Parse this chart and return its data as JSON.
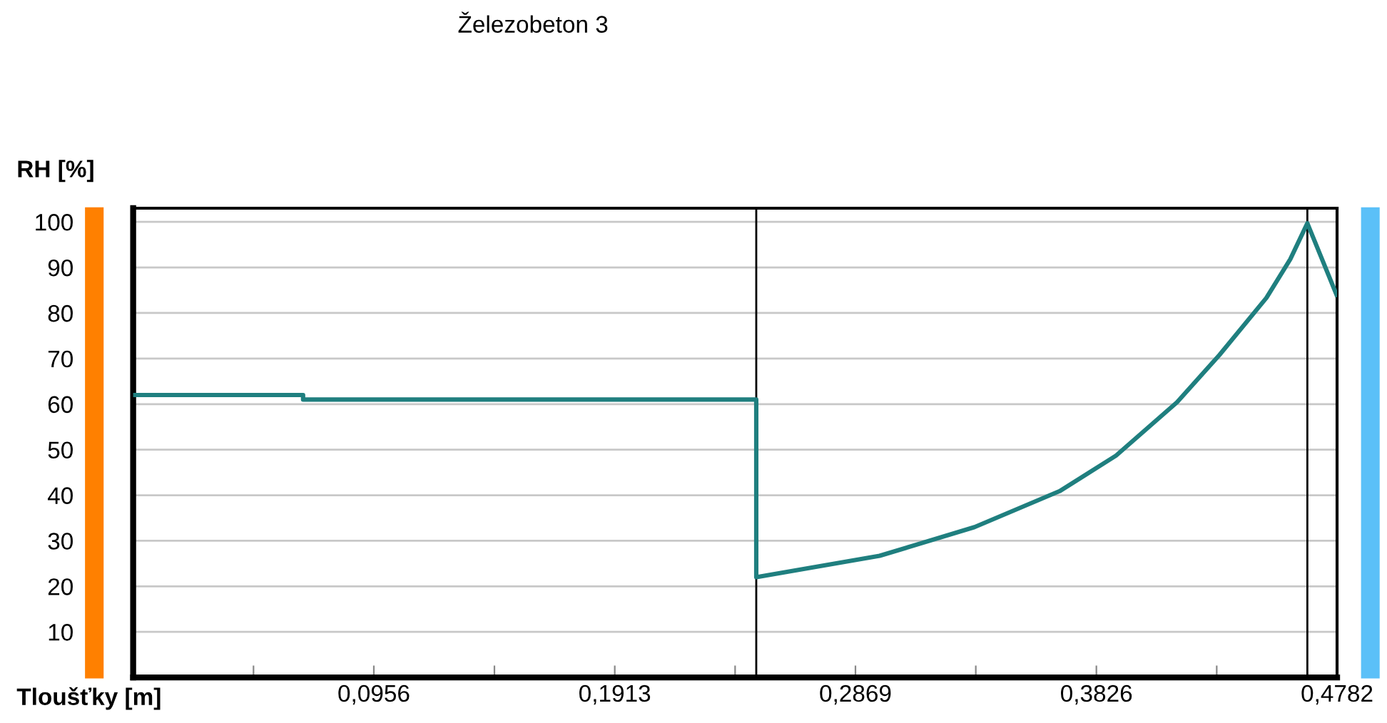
{
  "chart_data": {
    "type": "line",
    "xlabel": "Tloušťky [m]",
    "ylabel": "RH [%]",
    "annotations": [
      "Železobeton 3"
    ],
    "series": [
      {
        "color": "#1f7f7f",
        "x": [
          0,
          0.0675,
          0.0675,
          0.2475,
          0.2475,
          0.2965,
          0.3342,
          0.368,
          0.3904,
          0.4146,
          0.4315,
          0.4501,
          0.4596,
          0.4664,
          0.478
        ],
        "values": [
          62,
          62,
          61,
          61,
          22,
          26.7,
          33,
          40.9,
          48.7,
          60.4,
          70.8,
          83.3,
          91.8,
          99.7,
          84
        ]
      }
    ],
    "xlim": [
      0,
      0.4782
    ],
    "ylim": [
      0,
      103
    ],
    "xticks": [
      {
        "value": 0.0478,
        "label": null
      },
      {
        "value": 0.0956,
        "label": "0,0956"
      },
      {
        "value": 0.1435,
        "label": null
      },
      {
        "value": 0.1913,
        "label": "0,1913"
      },
      {
        "value": 0.2391,
        "label": null
      },
      {
        "value": 0.2869,
        "label": "0,2869"
      },
      {
        "value": 0.3347,
        "label": null
      },
      {
        "value": 0.3826,
        "label": "0,3826"
      },
      {
        "value": 0.4304,
        "label": null
      },
      {
        "value": 0.4782,
        "label": "0,4782"
      }
    ],
    "yticks": [
      10,
      20,
      30,
      40,
      50,
      60,
      70,
      80,
      90,
      100
    ],
    "ref_lines": [
      {
        "axis": "x",
        "value": 0.2475,
        "color": "#000000"
      },
      {
        "axis": "x",
        "value": 0.4664,
        "color": "#000000"
      }
    ],
    "grid": "y",
    "legend": false,
    "marker": "none",
    "line_style": "solid"
  }
}
